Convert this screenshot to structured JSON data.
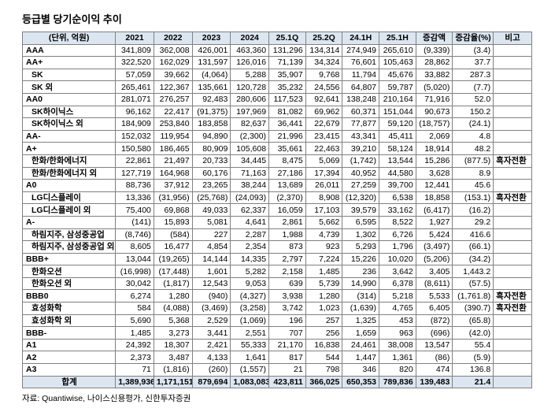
{
  "title": "등급별 당기순이익 추이",
  "source": "자료: Quantiwise, 나이스신용평가, 신한투자증권",
  "colors": {
    "header_bg": "#dce6f1",
    "grid_line": "#808080",
    "text": "#000000"
  },
  "table": {
    "header": [
      "(단위, 억원)",
      "2021",
      "2022",
      "2023",
      "2024",
      "25.1Q",
      "25.2Q",
      "24.1H",
      "25.1H",
      "증감액",
      "증감율(%)",
      "비고"
    ],
    "rows": [
      {
        "label": "AAA",
        "level": 0,
        "values": [
          "341,809",
          "362,008",
          "426,001",
          "463,360",
          "131,296",
          "134,314",
          "274,949",
          "265,610",
          "(9,339)",
          "(3.4)"
        ],
        "note": ""
      },
      {
        "label": "AA+",
        "level": 0,
        "values": [
          "322,520",
          "162,029",
          "131,597",
          "126,016",
          "71,139",
          "34,324",
          "76,601",
          "105,463",
          "28,862",
          "37.7"
        ],
        "note": ""
      },
      {
        "label": "SK",
        "level": 1,
        "values": [
          "57,059",
          "39,662",
          "(4,064)",
          "5,288",
          "35,907",
          "9,768",
          "11,794",
          "45,676",
          "33,882",
          "287.3"
        ],
        "note": ""
      },
      {
        "label": "SK 외",
        "level": 1,
        "values": [
          "265,461",
          "122,367",
          "135,661",
          "120,728",
          "35,232",
          "24,556",
          "64,807",
          "59,787",
          "(5,020)",
          "(7.7)"
        ],
        "note": ""
      },
      {
        "label": "AA0",
        "level": 0,
        "values": [
          "281,071",
          "276,257",
          "92,483",
          "280,606",
          "117,523",
          "92,641",
          "138,248",
          "210,164",
          "71,916",
          "52.0"
        ],
        "note": ""
      },
      {
        "label": "SK하이닉스",
        "level": 1,
        "values": [
          "96,162",
          "22,417",
          "(91,375)",
          "197,969",
          "81,082",
          "69,962",
          "60,371",
          "151,044",
          "90,673",
          "150.2"
        ],
        "note": ""
      },
      {
        "label": "SK하이닉스 외",
        "level": 1,
        "values": [
          "184,909",
          "253,840",
          "183,858",
          "82,637",
          "36,441",
          "22,679",
          "77,877",
          "59,120",
          "(18,757)",
          "(24.1)"
        ],
        "note": ""
      },
      {
        "label": "AA-",
        "level": 0,
        "values": [
          "152,032",
          "119,954",
          "94,890",
          "(2,300)",
          "21,996",
          "23,415",
          "43,341",
          "45,411",
          "2,069",
          "4.8"
        ],
        "note": ""
      },
      {
        "label": "A+",
        "level": 0,
        "values": [
          "150,580",
          "186,465",
          "80,909",
          "105,608",
          "35,661",
          "22,463",
          "39,210",
          "58,124",
          "18,914",
          "48.2"
        ],
        "note": ""
      },
      {
        "label": "한화/한화에너지",
        "level": 1,
        "values": [
          "22,861",
          "21,497",
          "20,733",
          "34,445",
          "8,475",
          "5,069",
          "(1,742)",
          "13,544",
          "15,286",
          "(877.5)"
        ],
        "note": "흑자전환"
      },
      {
        "label": "한화/한화에너지 외",
        "level": 1,
        "values": [
          "127,719",
          "164,968",
          "60,176",
          "71,163",
          "27,186",
          "17,394",
          "40,952",
          "44,580",
          "3,628",
          "8.9"
        ],
        "note": ""
      },
      {
        "label": "A0",
        "level": 0,
        "values": [
          "88,736",
          "37,912",
          "23,265",
          "38,244",
          "13,689",
          "26,011",
          "27,259",
          "39,700",
          "12,441",
          "45.6"
        ],
        "note": ""
      },
      {
        "label": "LG디스플레이",
        "level": 1,
        "values": [
          "13,336",
          "(31,956)",
          "(25,768)",
          "(24,093)",
          "(2,370)",
          "8,908",
          "(12,320)",
          "6,538",
          "18,858",
          "(153.1)"
        ],
        "note": "흑자전환"
      },
      {
        "label": "LG디스플레이 외",
        "level": 1,
        "values": [
          "75,400",
          "69,868",
          "49,033",
          "62,337",
          "16,059",
          "17,103",
          "39,579",
          "33,162",
          "(6,417)",
          "(16.2)"
        ],
        "note": ""
      },
      {
        "label": "A-",
        "level": 0,
        "values": [
          "(141)",
          "15,893",
          "5,081",
          "4,641",
          "2,861",
          "5,662",
          "6,595",
          "8,522",
          "1,927",
          "29.2"
        ],
        "note": ""
      },
      {
        "label": "하림지주, 삼성중공업",
        "level": 1,
        "values": [
          "(8,746)",
          "(584)",
          "227",
          "2,287",
          "1,988",
          "4,739",
          "1,302",
          "6,726",
          "5,424",
          "416.6"
        ],
        "note": ""
      },
      {
        "label": "하림지주, 삼성중공업 외",
        "level": 1,
        "values": [
          "8,605",
          "16,477",
          "4,854",
          "2,354",
          "873",
          "923",
          "5,293",
          "1,796",
          "(3,497)",
          "(66.1)"
        ],
        "note": ""
      },
      {
        "label": "BBB+",
        "level": 0,
        "values": [
          "13,044",
          "(19,265)",
          "14,144",
          "14,335",
          "2,797",
          "7,224",
          "15,226",
          "10,020",
          "(5,206)",
          "(34.2)"
        ],
        "note": ""
      },
      {
        "label": "한화오션",
        "level": 1,
        "values": [
          "(16,998)",
          "(17,448)",
          "1,601",
          "5,282",
          "2,158",
          "1,485",
          "236",
          "3,642",
          "3,405",
          "1,443.2"
        ],
        "note": ""
      },
      {
        "label": "한화오션 외",
        "level": 1,
        "values": [
          "30,042",
          "(1,817)",
          "12,543",
          "9,053",
          "639",
          "5,739",
          "14,990",
          "6,378",
          "(8,611)",
          "(57.5)"
        ],
        "note": ""
      },
      {
        "label": "BBB0",
        "level": 0,
        "values": [
          "6,274",
          "1,280",
          "(940)",
          "(4,327)",
          "3,938",
          "1,280",
          "(314)",
          "5,218",
          "5,533",
          "(1,761.8)"
        ],
        "note": "흑자전환"
      },
      {
        "label": "효성화학",
        "level": 1,
        "values": [
          "584",
          "(4,088)",
          "(3,469)",
          "(3,258)",
          "3,742",
          "1,023",
          "(1,639)",
          "4,765",
          "6,405",
          "(390.7)"
        ],
        "note": "흑자전환"
      },
      {
        "label": "효성화학 외",
        "level": 1,
        "values": [
          "5,690",
          "5,368",
          "2,529",
          "(1,069)",
          "196",
          "257",
          "1,325",
          "453",
          "(872)",
          "(65.8)"
        ],
        "note": ""
      },
      {
        "label": "BBB-",
        "level": 0,
        "values": [
          "1,485",
          "3,273",
          "3,441",
          "2,551",
          "707",
          "256",
          "1,659",
          "963",
          "(696)",
          "(42.0)"
        ],
        "note": ""
      },
      {
        "label": "A1",
        "level": 0,
        "values": [
          "24,392",
          "18,307",
          "2,421",
          "55,333",
          "21,170",
          "16,838",
          "24,461",
          "38,008",
          "13,547",
          "55.4"
        ],
        "note": ""
      },
      {
        "label": "A2",
        "level": 0,
        "values": [
          "2,373",
          "3,487",
          "4,133",
          "1,641",
          "817",
          "544",
          "1,447",
          "1,361",
          "(86)",
          "(5.9)"
        ],
        "note": ""
      },
      {
        "label": "A3",
        "level": 0,
        "values": [
          "71",
          "(1,816)",
          "(260)",
          "(1,557)",
          "21",
          "798",
          "346",
          "820",
          "474",
          "136.8"
        ],
        "note": ""
      },
      {
        "label": "합계",
        "level": 0,
        "total": true,
        "values": [
          "1,389,936",
          "1,171,151",
          "879,694",
          "1,083,083",
          "423,811",
          "366,025",
          "650,353",
          "789,836",
          "139,483",
          "21.4"
        ],
        "note": ""
      }
    ]
  }
}
